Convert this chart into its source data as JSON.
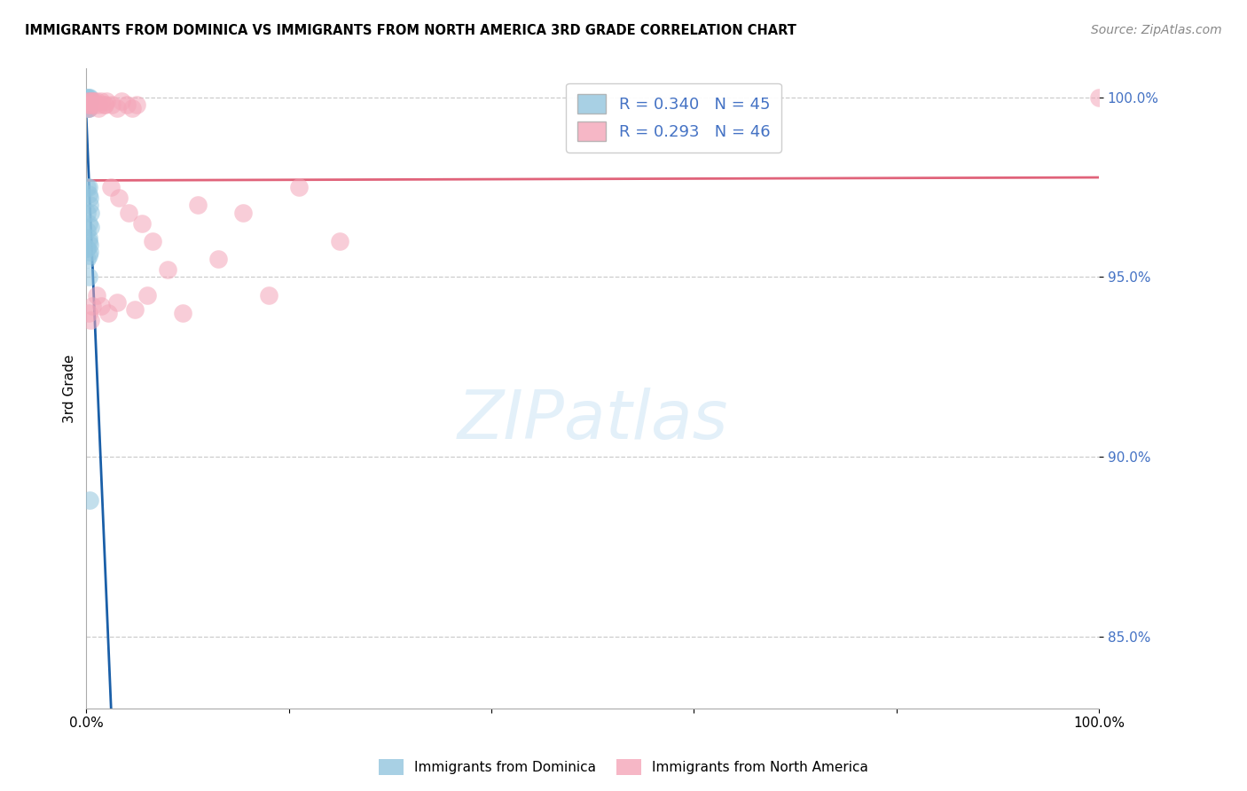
{
  "title": "IMMIGRANTS FROM DOMINICA VS IMMIGRANTS FROM NORTH AMERICA 3RD GRADE CORRELATION CHART",
  "source": "Source: ZipAtlas.com",
  "ylabel": "3rd Grade",
  "legend_bottom": [
    "Immigrants from Dominica",
    "Immigrants from North America"
  ],
  "R1": 0.34,
  "N1": 45,
  "R2": 0.293,
  "N2": 46,
  "color_blue": "#92c5de",
  "color_pink": "#f4a5b8",
  "trendline_color_blue": "#1a5fa8",
  "trendline_color_pink": "#e0637a",
  "y_tick_values": [
    0.85,
    0.9,
    0.95,
    1.0
  ],
  "y_tick_labels": [
    "85.0%",
    "90.0%",
    "95.0%",
    "100.0%"
  ],
  "ylim_min": 0.83,
  "ylim_max": 1.008,
  "xlim_min": 0.0,
  "xlim_max": 1.0,
  "blue_x": [
    0.001,
    0.002,
    0.001,
    0.003,
    0.001,
    0.002,
    0.001,
    0.002,
    0.001,
    0.002,
    0.001,
    0.003,
    0.002,
    0.001,
    0.002,
    0.001,
    0.002,
    0.003,
    0.001,
    0.002,
    0.001,
    0.002,
    0.001,
    0.003,
    0.002,
    0.001,
    0.002,
    0.003,
    0.004,
    0.002,
    0.001,
    0.002,
    0.003,
    0.001,
    0.002,
    0.003,
    0.001,
    0.004,
    0.002,
    0.001,
    0.003,
    0.002,
    0.001,
    0.002,
    0.003
  ],
  "blue_y": [
    1.0,
    1.0,
    0.999,
    1.0,
    0.999,
    0.998,
    0.999,
    0.998,
    0.997,
    0.999,
    0.998,
    0.999,
    0.997,
    0.999,
    0.998,
    0.997,
    0.998,
    0.999,
    0.997,
    0.999,
    0.998,
    0.997,
    0.998,
    0.999,
    0.998,
    0.975,
    0.973,
    0.97,
    0.968,
    0.965,
    0.963,
    0.961,
    0.959,
    0.958,
    0.975,
    0.972,
    0.968,
    0.964,
    0.96,
    0.958,
    0.957,
    0.956,
    0.955,
    0.95,
    0.888
  ],
  "pink_x": [
    0.001,
    0.003,
    0.002,
    0.005,
    0.003,
    0.008,
    0.01,
    0.012,
    0.015,
    0.018,
    0.02,
    0.025,
    0.03,
    0.035,
    0.04,
    0.045,
    0.05,
    0.002,
    0.004,
    0.006,
    0.008,
    0.012,
    0.018,
    0.024,
    0.032,
    0.042,
    0.055,
    0.065,
    0.08,
    0.095,
    0.11,
    0.13,
    0.155,
    0.18,
    0.21,
    0.25,
    0.002,
    0.004,
    0.006,
    0.01,
    0.015,
    0.022,
    0.03,
    0.048,
    0.06,
    1.0
  ],
  "pink_y": [
    0.999,
    0.999,
    0.998,
    0.999,
    0.998,
    0.999,
    0.999,
    0.998,
    0.999,
    0.998,
    0.999,
    0.998,
    0.997,
    0.999,
    0.998,
    0.997,
    0.998,
    0.997,
    0.998,
    0.999,
    0.998,
    0.997,
    0.998,
    0.975,
    0.972,
    0.968,
    0.965,
    0.96,
    0.952,
    0.94,
    0.97,
    0.955,
    0.968,
    0.945,
    0.975,
    0.96,
    0.94,
    0.938,
    0.942,
    0.945,
    0.942,
    0.94,
    0.943,
    0.941,
    0.945,
    1.0
  ]
}
